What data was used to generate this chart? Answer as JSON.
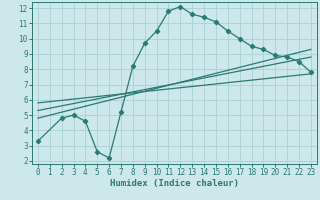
{
  "xlabel": "Humidex (Indice chaleur)",
  "bg_color": "#cce8ea",
  "grid_color": "#aed4d6",
  "line_color": "#2a7a72",
  "xlim": [
    -0.5,
    23.5
  ],
  "ylim": [
    1.8,
    12.4
  ],
  "xticks": [
    0,
    1,
    2,
    3,
    4,
    5,
    6,
    7,
    8,
    9,
    10,
    11,
    12,
    13,
    14,
    15,
    16,
    17,
    18,
    19,
    20,
    21,
    22,
    23
  ],
  "yticks": [
    2,
    3,
    4,
    5,
    6,
    7,
    8,
    9,
    10,
    11,
    12
  ],
  "line1_x": [
    0,
    2,
    3,
    4,
    5,
    6,
    7,
    8,
    9,
    10,
    11,
    12,
    13,
    14,
    15,
    16,
    17,
    18,
    19,
    20,
    21,
    22,
    23
  ],
  "line1_y": [
    3.3,
    4.8,
    5.0,
    4.6,
    2.6,
    2.2,
    5.2,
    8.2,
    9.7,
    10.5,
    11.8,
    12.1,
    11.6,
    11.4,
    11.1,
    10.5,
    10.0,
    9.5,
    9.3,
    8.9,
    8.8,
    8.5,
    7.8
  ],
  "line2_x": [
    0,
    23
  ],
  "line2_y": [
    4.8,
    9.3
  ],
  "line3_x": [
    0,
    23
  ],
  "line3_y": [
    5.3,
    8.8
  ],
  "line4_x": [
    0,
    23
  ],
  "line4_y": [
    5.8,
    7.7
  ]
}
